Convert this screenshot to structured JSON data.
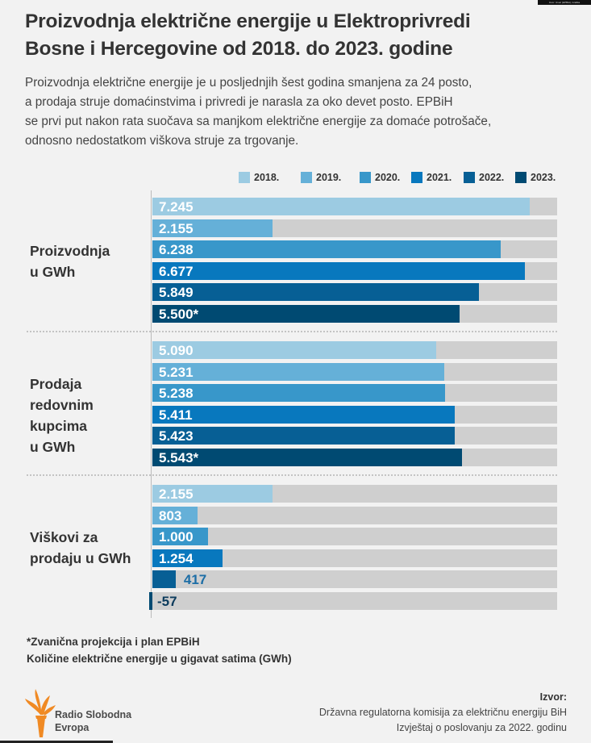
{
  "credit": "Izvor: Izvori (EPBiH), Grafika",
  "title_lines": [
    "Proizvodnja električne energije u Elektroprivredi",
    "Bosne i Hercegovine od 2018. do 2023. godine"
  ],
  "lead_lines": [
    "Proizvodnja električne energije je u posljednjih šest godina smanjena za 24 posto,",
    "a prodaja struje domaćinstvima i privredi je narasla za oko devet posto. EPBiH",
    "se prvi put nakon rata suočava sa manjkom električne energije za domaće potrošače,",
    "odnosno nedostatkom viškova struje za trgovanje."
  ],
  "colors": {
    "2018.": "#9ccbe2",
    "2019.": "#65b0d8",
    "2020.": "#3897ca",
    "2021.": "#0878be",
    "2022.": "#075f95",
    "2023.": "#004a72",
    "track": "#cfcfcf",
    "outside_label_2022": "#1d6ea6",
    "outside_label_2023": "#0b3b5c"
  },
  "chart_data": {
    "type": "bar",
    "orientation": "horizontal",
    "title": "Proizvodnja električne energije u Elektroprivredi Bosne i Hercegovine od 2018. do 2023. godine",
    "unit": "GWh",
    "legend": [
      "2018.",
      "2019.",
      "2020.",
      "2021.",
      "2022.",
      "2023."
    ],
    "legend_position": "top-right",
    "xlim": [
      0,
      7.25
    ],
    "value_scale_note": "values in thousands of GWh (bar length); labels use '.' as thousands separator",
    "groups": [
      {
        "label_lines": [
          "Proizvodnja",
          "u GWh"
        ],
        "values": [
          7245,
          2155,
          6238,
          6677,
          5849,
          5500
        ],
        "bar_lengths": [
          7245,
          2155,
          6238,
          6677,
          5849,
          5500
        ],
        "labels": [
          "7.245",
          "2.155",
          "6.238",
          "6.677",
          "5.849",
          "5.500*"
        ]
      },
      {
        "label_lines": [
          "Prodaja",
          "redovnim",
          "kupcima",
          "u GWh"
        ],
        "values": [
          5090,
          5231,
          5238,
          5411,
          5423,
          5543
        ],
        "bar_lengths": [
          5090,
          5231,
          5238,
          5411,
          5423,
          5543
        ],
        "labels": [
          "5.090",
          "5.231",
          "5.238",
          "5.411",
          "5.423",
          "5.543*"
        ]
      },
      {
        "label_lines": [
          "Viškovi za",
          "prodaju u GWh"
        ],
        "values": [
          2155,
          803,
          1000,
          1254,
          417,
          -57
        ],
        "bar_lengths": [
          2155,
          803,
          1000,
          1254,
          417,
          -57
        ],
        "labels": [
          "2.155",
          "803",
          "1.000",
          "1.254",
          "417",
          "-57"
        ]
      }
    ]
  },
  "footnotes": [
    "*Zvanična projekcija i plan EPBiH",
    "Količine električne energije u gigavat satima (GWh)"
  ],
  "logo": {
    "icon": "torch-icon",
    "line1": "Radio Slobodna",
    "line2": "Evropa"
  },
  "source": {
    "heading": "Izvor:",
    "line1": "Državna regulatorna komisija za električnu energiju BiH",
    "line2": "Izvještaj o poslovanju za 2022. godinu"
  }
}
